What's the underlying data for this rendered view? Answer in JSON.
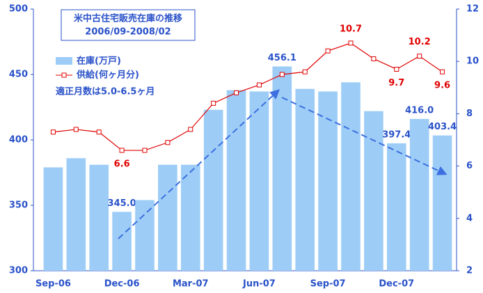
{
  "chart_data": {
    "type": "bar_line",
    "title": "米中古住宅販売在庫の推移",
    "subtitle": "2006/09-2008/02",
    "annotation": "適正月数は5.0-6.5ヶ月",
    "categories": [
      "Sep-06",
      null,
      null,
      "Dec-06",
      null,
      null,
      "Mar-07",
      null,
      null,
      "Jun-07",
      null,
      null,
      "Sep-07",
      null,
      null,
      "Dec-07",
      null,
      null
    ],
    "series": [
      {
        "name": "在庫(万戸)",
        "color": "#9dcdf7",
        "axis": "y",
        "values": [
          379,
          386,
          381,
          345,
          354,
          381,
          381,
          423,
          438,
          437,
          456.1,
          439,
          437,
          444,
          422,
          397.4,
          416,
          403.4
        ],
        "value_labels": [
          null,
          null,
          null,
          "345.0",
          null,
          null,
          null,
          null,
          null,
          null,
          "456.1",
          null,
          null,
          null,
          null,
          "397.4",
          "416.0",
          "403.4"
        ]
      },
      {
        "name": "供給(何ヶ月分)",
        "color": "#e00000",
        "axis": "y2",
        "values": [
          7.3,
          7.4,
          7.3,
          6.6,
          6.6,
          6.9,
          7.4,
          8.4,
          8.8,
          9.1,
          9.5,
          9.6,
          10.4,
          10.7,
          10.1,
          9.7,
          10.2,
          9.6
        ],
        "value_labels": [
          null,
          null,
          null,
          "6.6",
          null,
          null,
          null,
          null,
          null,
          null,
          null,
          null,
          null,
          "10.7",
          null,
          "9.7",
          "10.2",
          "9.6"
        ]
      }
    ],
    "ylim": [
      300,
      500
    ],
    "yticks": [
      300,
      350,
      400,
      450,
      500
    ],
    "y2lim": [
      2,
      12
    ],
    "y2ticks": [
      2,
      4,
      6,
      8,
      10,
      12
    ]
  }
}
